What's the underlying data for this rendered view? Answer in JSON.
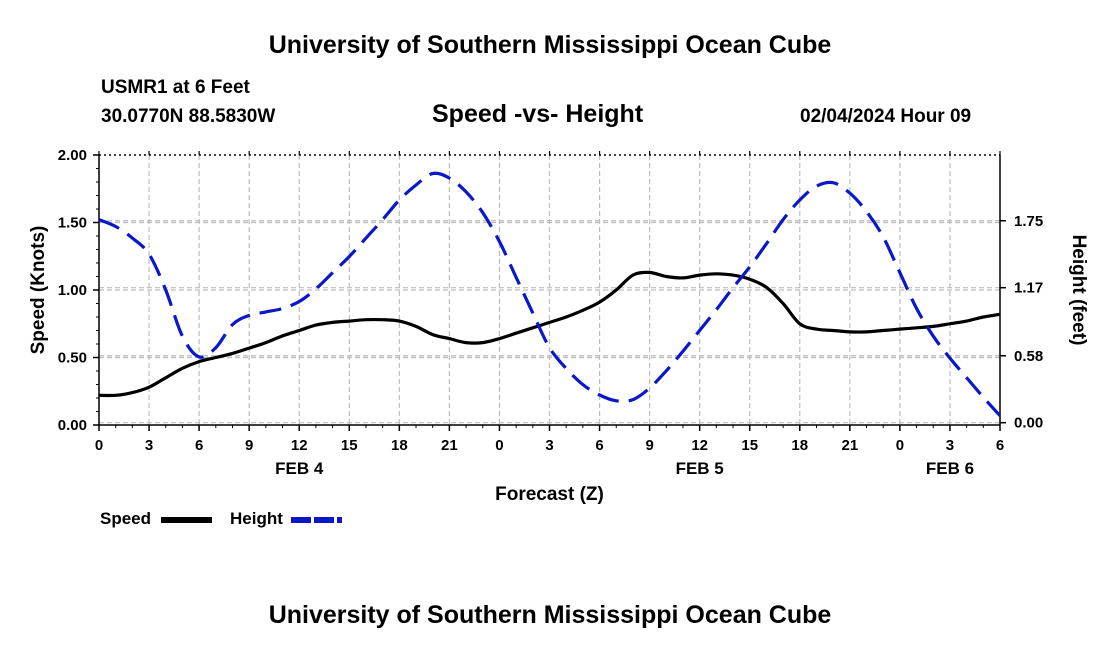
{
  "header": {
    "title_top": "University of Southern Mississippi Ocean Cube",
    "title_bottom": "University of Southern Mississippi Ocean Cube",
    "station": "USMR1 at 6 Feet",
    "coords": "30.0770N  88.5830W",
    "datetime": "02/04/2024 Hour 09"
  },
  "colors": {
    "speed": "#000000",
    "height": "#0a18c8",
    "grid": "#bdbdbd"
  },
  "chart_data": {
    "type": "line",
    "title": "Speed -vs- Height",
    "xlabel": "Forecast (Z)",
    "ylabel": "Speed (Knots)",
    "y2label": "Height (feet)",
    "x_hours": [
      0,
      54
    ],
    "x_ticks": [
      0,
      3,
      6,
      9,
      12,
      15,
      18,
      21,
      24,
      27,
      30,
      33,
      36,
      39,
      42,
      45,
      48,
      51,
      54
    ],
    "x_tick_labels": [
      "0",
      "3",
      "6",
      "9",
      "12",
      "15",
      "18",
      "21",
      "0",
      "3",
      "6",
      "9",
      "12",
      "15",
      "18",
      "21",
      "0",
      "3",
      "6"
    ],
    "day_labels": [
      {
        "hour": 12,
        "label": "FEB 4"
      },
      {
        "hour": 36,
        "label": "FEB 5"
      },
      {
        "hour": 51,
        "label": "FEB 6"
      }
    ],
    "ylim": [
      0,
      2.0
    ],
    "y_ticks": [
      0.0,
      0.5,
      1.0,
      1.5,
      2.0
    ],
    "y_tick_labels": [
      "0.00",
      "0.50",
      "1.00",
      "1.50",
      "2.00"
    ],
    "y2lim": [
      -0.02,
      2.32
    ],
    "y2_ticks": [
      0.0,
      0.58,
      1.17,
      1.75
    ],
    "y2_tick_labels": [
      "0.00",
      "0.58",
      "1.17",
      "1.75"
    ],
    "series": [
      {
        "name": "Speed",
        "axis": "left",
        "style": "solid",
        "x": [
          0,
          1,
          2,
          3,
          4,
          5,
          6,
          7,
          8,
          9,
          10,
          11,
          12,
          13,
          14,
          15,
          16,
          17,
          18,
          19,
          20,
          21,
          22,
          23,
          24,
          25,
          26,
          27,
          28,
          29,
          30,
          31,
          32,
          33,
          34,
          35,
          36,
          37,
          38,
          39,
          40,
          41,
          42,
          43,
          44,
          45,
          46,
          47,
          48,
          49,
          50,
          51,
          52,
          53,
          54
        ],
        "values": [
          0.22,
          0.22,
          0.24,
          0.28,
          0.35,
          0.42,
          0.47,
          0.5,
          0.53,
          0.57,
          0.61,
          0.66,
          0.7,
          0.74,
          0.76,
          0.77,
          0.78,
          0.78,
          0.77,
          0.73,
          0.67,
          0.64,
          0.61,
          0.61,
          0.64,
          0.68,
          0.72,
          0.76,
          0.8,
          0.85,
          0.91,
          1.0,
          1.11,
          1.13,
          1.1,
          1.09,
          1.11,
          1.12,
          1.11,
          1.08,
          1.02,
          0.9,
          0.75,
          0.71,
          0.7,
          0.69,
          0.69,
          0.7,
          0.71,
          0.72,
          0.73,
          0.75,
          0.77,
          0.8,
          0.82
        ]
      },
      {
        "name": "Height",
        "axis": "right",
        "style": "dashed",
        "x": [
          0,
          1,
          2,
          3,
          4,
          5,
          6,
          7,
          8,
          9,
          10,
          11,
          12,
          13,
          14,
          15,
          16,
          17,
          18,
          19,
          20,
          21,
          22,
          23,
          24,
          25,
          26,
          27,
          28,
          29,
          30,
          31,
          32,
          33,
          34,
          35,
          36,
          37,
          38,
          39,
          40,
          41,
          42,
          43,
          44,
          45,
          46,
          47,
          48,
          49,
          50,
          51,
          52,
          53,
          54
        ],
        "values": [
          1.76,
          1.7,
          1.6,
          1.46,
          1.15,
          0.75,
          0.57,
          0.65,
          0.85,
          0.93,
          0.96,
          0.99,
          1.05,
          1.16,
          1.3,
          1.44,
          1.6,
          1.76,
          1.93,
          2.06,
          2.16,
          2.12,
          2.0,
          1.82,
          1.57,
          1.26,
          0.95,
          0.65,
          0.47,
          0.33,
          0.24,
          0.19,
          0.2,
          0.3,
          0.45,
          0.62,
          0.8,
          0.98,
          1.17,
          1.35,
          1.55,
          1.76,
          1.93,
          2.05,
          2.08,
          1.99,
          1.83,
          1.61,
          1.3,
          0.99,
          0.75,
          0.56,
          0.39,
          0.22,
          0.06
        ]
      }
    ],
    "legend": [
      {
        "label": "Speed",
        "style": "solid"
      },
      {
        "label": "Height",
        "style": "dashed"
      }
    ],
    "grid": true
  }
}
